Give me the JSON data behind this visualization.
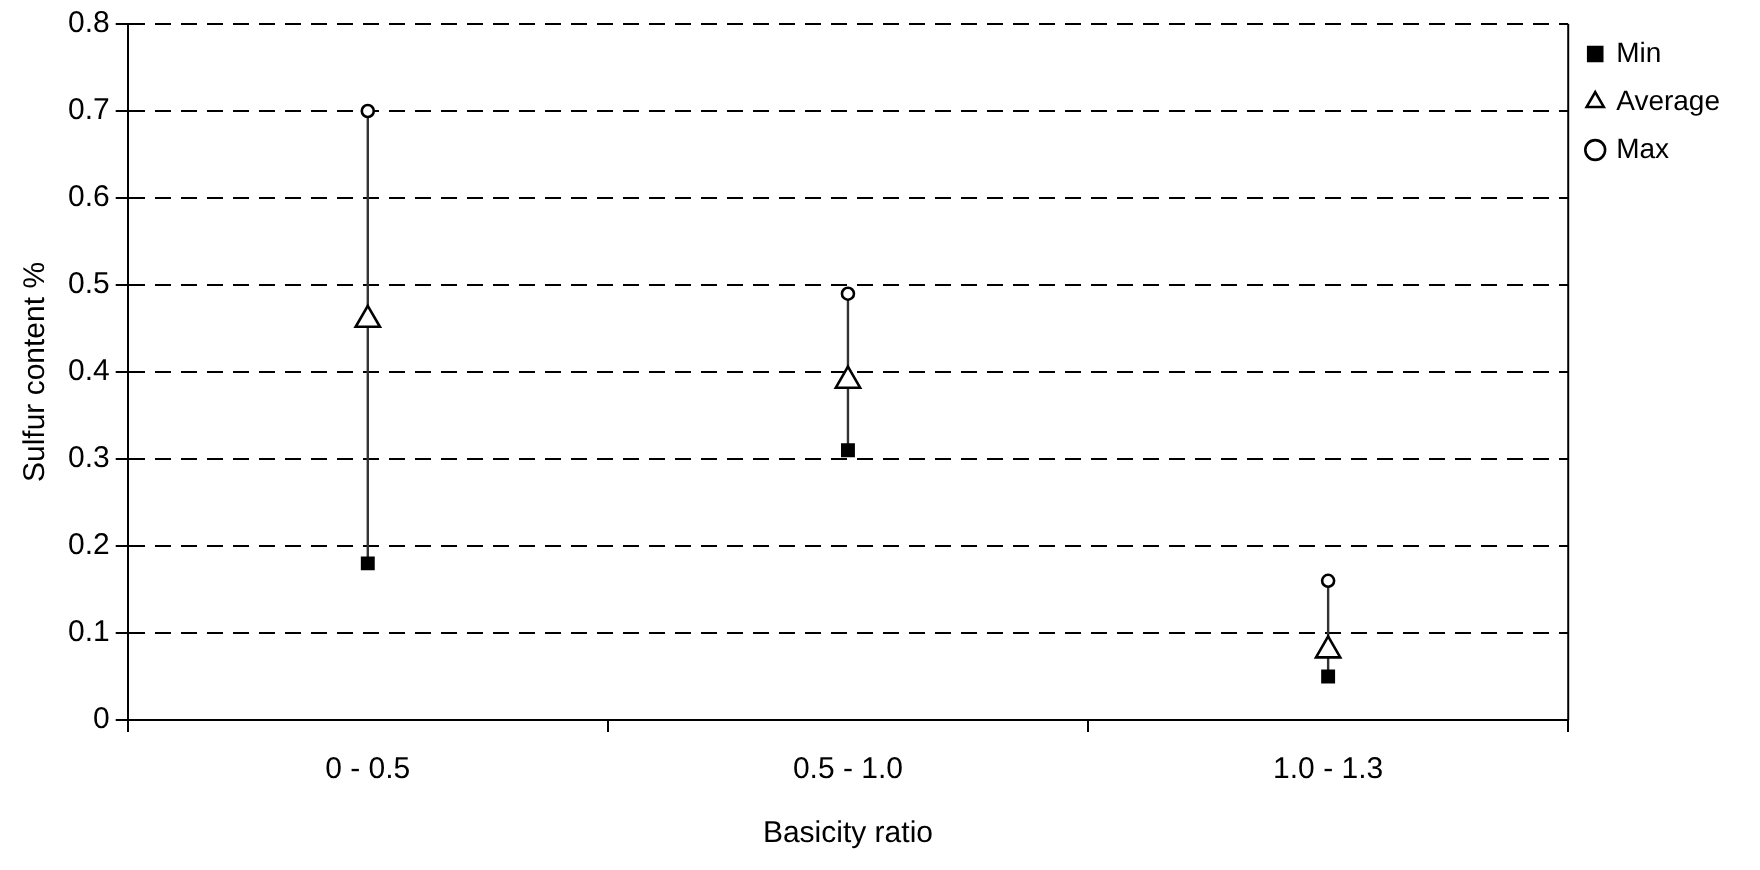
{
  "chart_data": {
    "type": "scatter",
    "xlabel": "Basicity ratio",
    "ylabel": "Sulfur content %",
    "categories": [
      "0 - 0.5",
      "0.5 - 1.0",
      "1.0 - 1.3"
    ],
    "series": [
      {
        "name": "Min",
        "color": "#000000",
        "marker": "square",
        "values": [
          0.18,
          0.31,
          0.05
        ]
      },
      {
        "name": "Average",
        "color": "#000000",
        "marker": "triangle",
        "values": [
          0.46,
          0.39,
          0.08
        ]
      },
      {
        "name": "Max",
        "color": "#000000",
        "marker": "circle",
        "values": [
          0.7,
          0.49,
          0.16
        ]
      }
    ],
    "ylim": [
      0,
      0.8
    ],
    "yticks": [
      0,
      0.1,
      0.2,
      0.3,
      0.4,
      0.5,
      0.6,
      0.7,
      0.8
    ],
    "grid": "y",
    "legend": "right"
  }
}
